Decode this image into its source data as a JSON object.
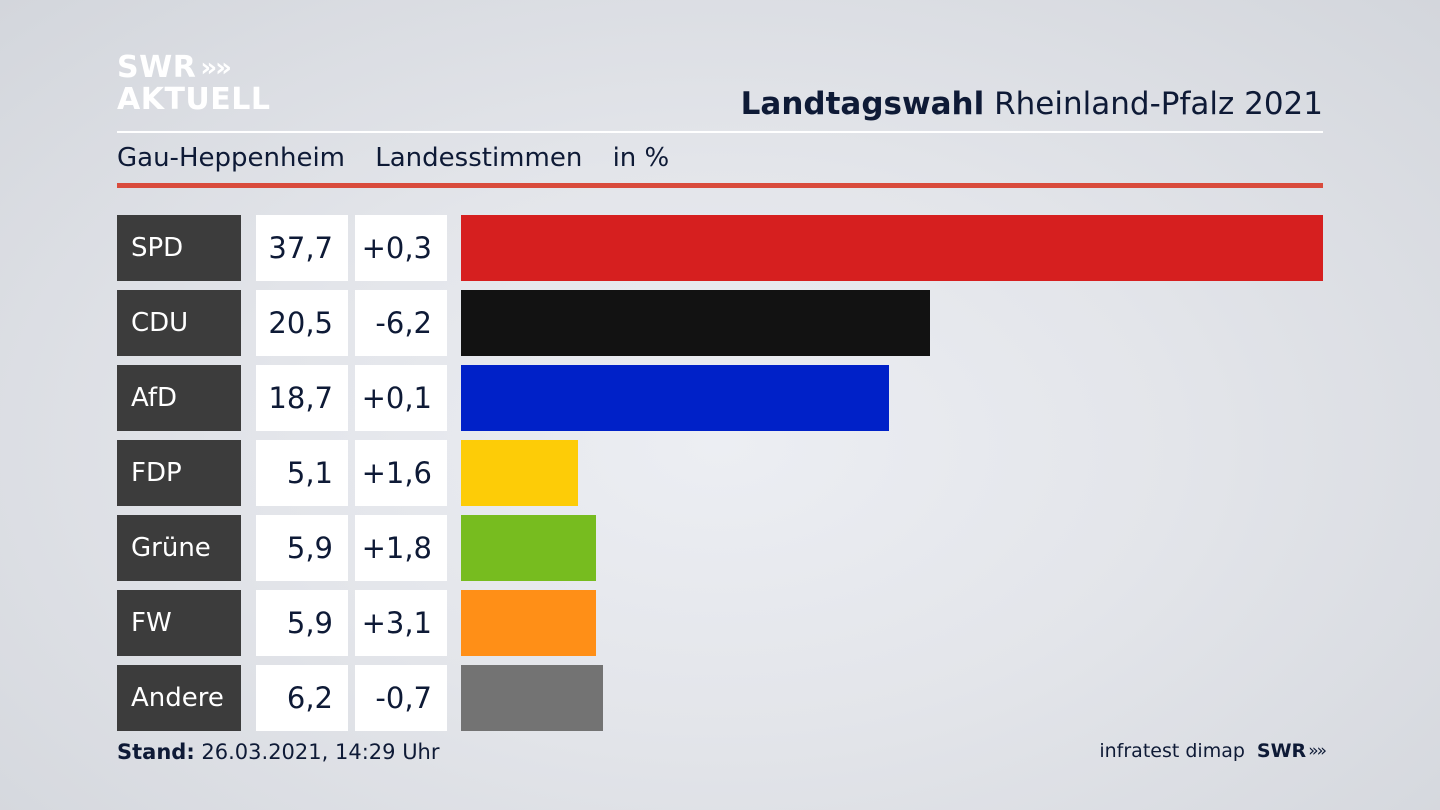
{
  "logo": {
    "line1": "SWR",
    "line1_icon": "double-chevron-icon",
    "line2": "AKTUELL",
    "chevron_glyph": "»"
  },
  "header": {
    "title_bold": "Landtagswahl",
    "title_rest": "Rheinland-Pfalz 2021"
  },
  "subheader": {
    "place": "Gau-Heppenheim",
    "type": "Landesstimmen",
    "unit": "in %"
  },
  "colors": {
    "accent_rule": "#d94b3c",
    "label_bg": "#3c3c3c"
  },
  "chart_data": {
    "type": "bar",
    "orientation": "horizontal",
    "categories": [
      "SPD",
      "CDU",
      "AfD",
      "FDP",
      "Grüne",
      "FW",
      "Andere"
    ],
    "values": [
      37.7,
      20.5,
      18.7,
      5.1,
      5.9,
      5.9,
      6.2
    ],
    "values_display": [
      "37,7",
      "20,5",
      "18,7",
      "5,1",
      "5,9",
      "5,9",
      "6,2"
    ],
    "changes_display": [
      "+0,3",
      "-6,2",
      "+0,1",
      "+1,6",
      "+1,8",
      "+3,1",
      "-0,7"
    ],
    "changes": [
      0.3,
      -6.2,
      0.1,
      1.6,
      1.8,
      3.1,
      -0.7
    ],
    "colors": [
      "#d61f1f",
      "#121212",
      "#0021c8",
      "#fdcc07",
      "#77bc1f",
      "#ff8f17",
      "#737373"
    ],
    "xlim": [
      0,
      37.7
    ],
    "grid": false,
    "legend": "none"
  },
  "footer": {
    "stand_label": "Stand:",
    "stand_value": "26.03.2021, 14:29 Uhr",
    "source": "infratest dimap",
    "brand": "SWR"
  }
}
